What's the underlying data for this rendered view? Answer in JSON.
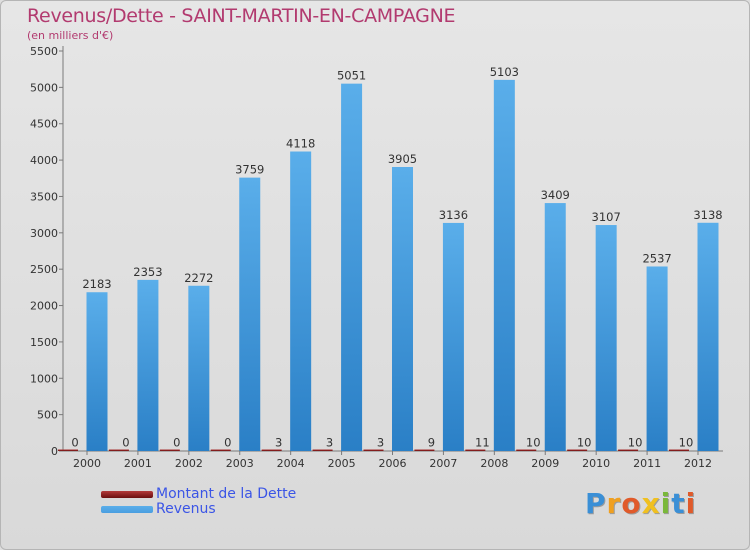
{
  "chart_data": {
    "type": "bar",
    "title": "Revenus/Dette - SAINT-MARTIN-EN-CAMPAGNE",
    "subtitle": "(en milliers d'€)",
    "xlabel": "",
    "ylabel": "",
    "ylim": [
      0,
      5500
    ],
    "yticks": [
      0,
      500,
      1000,
      1500,
      2000,
      2500,
      3000,
      3500,
      4000,
      4500,
      5000,
      5500
    ],
    "grid": false,
    "legend_position": "bottom-left",
    "categories": [
      "2000",
      "2001",
      "2002",
      "2003",
      "2004",
      "2005",
      "2006",
      "2007",
      "2008",
      "2009",
      "2010",
      "2011",
      "2012"
    ],
    "series": [
      {
        "name": "Montant de la Dette",
        "color": "#6b0f0f",
        "values": [
          0,
          0,
          0,
          0,
          3,
          3,
          3,
          9,
          11,
          10,
          10,
          10,
          10
        ]
      },
      {
        "name": "Revenus",
        "color": "#4a9ee0",
        "values": [
          2183,
          2353,
          2272,
          3759,
          4118,
          5051,
          3905,
          3136,
          5103,
          3409,
          3107,
          2537,
          3138
        ]
      }
    ]
  },
  "logo": {
    "letters": [
      "P",
      "r",
      "o",
      "x",
      "i",
      "t",
      "i"
    ],
    "colors": [
      "#3a8fd6",
      "#f0a020",
      "#e05a2a",
      "#f0c020",
      "#7ab83a",
      "#3a8fd6",
      "#e05a2a"
    ]
  }
}
